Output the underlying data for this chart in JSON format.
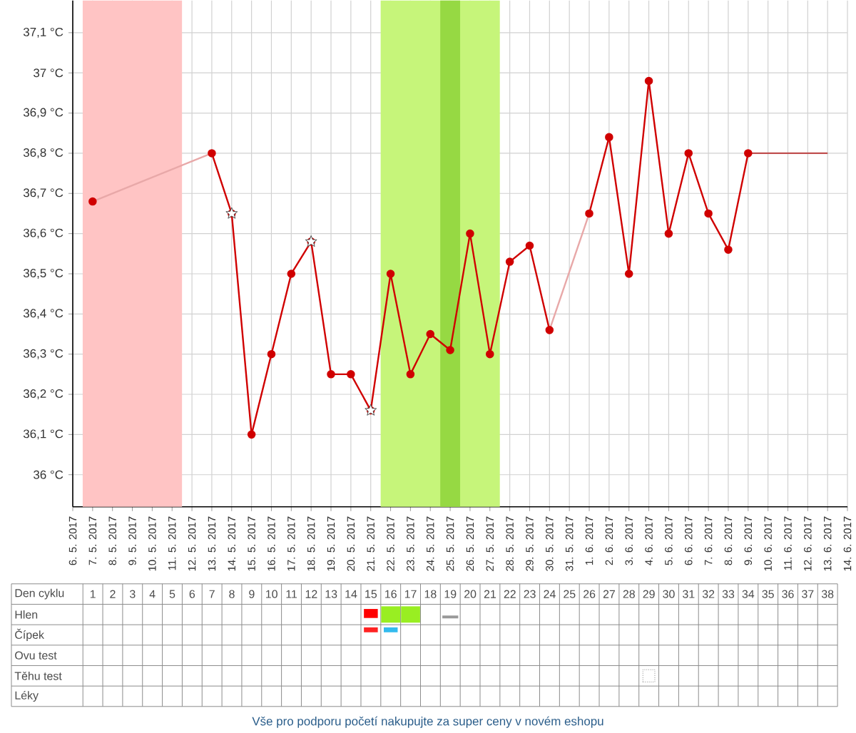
{
  "chart_data": {
    "type": "line",
    "xlim": [
      "2017-05-06",
      "2017-06-14"
    ],
    "xticks": [
      {
        "value": "2017-05-06",
        "label": "6. 5. 2017"
      },
      {
        "value": "2017-05-07",
        "label": "7. 5. 2017"
      },
      {
        "value": "2017-05-08",
        "label": "8. 5. 2017"
      },
      {
        "value": "2017-05-09",
        "label": "9. 5. 2017"
      },
      {
        "value": "2017-05-10",
        "label": "10. 5. 2017"
      },
      {
        "value": "2017-05-11",
        "label": "11. 5. 2017"
      },
      {
        "value": "2017-05-12",
        "label": "12. 5. 2017"
      },
      {
        "value": "2017-05-13",
        "label": "13. 5. 2017"
      },
      {
        "value": "2017-05-14",
        "label": "14. 5. 2017"
      },
      {
        "value": "2017-05-15",
        "label": "15. 5. 2017"
      },
      {
        "value": "2017-05-16",
        "label": "16. 5. 2017"
      },
      {
        "value": "2017-05-17",
        "label": "17. 5. 2017"
      },
      {
        "value": "2017-05-18",
        "label": "18. 5. 2017"
      },
      {
        "value": "2017-05-19",
        "label": "19. 5. 2017"
      },
      {
        "value": "2017-05-20",
        "label": "20. 5. 2017"
      },
      {
        "value": "2017-05-21",
        "label": "21. 5. 2017"
      },
      {
        "value": "2017-05-22",
        "label": "22. 5. 2017"
      },
      {
        "value": "2017-05-23",
        "label": "23. 5. 2017"
      },
      {
        "value": "2017-05-24",
        "label": "24. 5. 2017"
      },
      {
        "value": "2017-05-25",
        "label": "25. 5. 2017"
      },
      {
        "value": "2017-05-26",
        "label": "26. 5. 2017"
      },
      {
        "value": "2017-05-27",
        "label": "27. 5. 2017"
      },
      {
        "value": "2017-05-28",
        "label": "28. 5. 2017"
      },
      {
        "value": "2017-05-29",
        "label": "29. 5. 2017"
      },
      {
        "value": "2017-05-30",
        "label": "30. 5. 2017"
      },
      {
        "value": "2017-05-31",
        "label": "31. 5. 2017"
      },
      {
        "value": "2017-06-01",
        "label": "1. 6. 2017"
      },
      {
        "value": "2017-06-02",
        "label": "2. 6. 2017"
      },
      {
        "value": "2017-06-03",
        "label": "3. 6. 2017"
      },
      {
        "value": "2017-06-04",
        "label": "4. 6. 2017"
      },
      {
        "value": "2017-06-05",
        "label": "5. 6. 2017"
      },
      {
        "value": "2017-06-06",
        "label": "6. 6. 2017"
      },
      {
        "value": "2017-06-07",
        "label": "7. 6. 2017"
      },
      {
        "value": "2017-06-08",
        "label": "8. 6. 2017"
      },
      {
        "value": "2017-06-09",
        "label": "9. 6. 2017"
      },
      {
        "value": "2017-06-10",
        "label": "10. 6. 2017"
      },
      {
        "value": "2017-06-11",
        "label": "11. 6. 2017"
      },
      {
        "value": "2017-06-12",
        "label": "12. 6. 2017"
      },
      {
        "value": "2017-06-13",
        "label": "13. 6. 2017"
      },
      {
        "value": "2017-06-14",
        "label": "14. 6. 2017"
      }
    ],
    "ylim": [
      35.92,
      37.18
    ],
    "yticks": [
      {
        "value": 36,
        "label": "36 °C"
      },
      {
        "value": 36.1,
        "label": "36,1 °C"
      },
      {
        "value": 36.2,
        "label": "36,2 °C"
      },
      {
        "value": 36.3,
        "label": "36,3 °C"
      },
      {
        "value": 36.4,
        "label": "36,4 °C"
      },
      {
        "value": 36.5,
        "label": "36,5 °C"
      },
      {
        "value": 36.6,
        "label": "36,6 °C"
      },
      {
        "value": 36.7,
        "label": "36,7 °C"
      },
      {
        "value": 36.8,
        "label": "36,8 °C"
      },
      {
        "value": 36.9,
        "label": "36,9 °C"
      },
      {
        "value": 37,
        "label": "37 °C"
      },
      {
        "value": 37.1,
        "label": "37,1 °C"
      }
    ],
    "grid": true,
    "marker": "circle",
    "series": [
      {
        "color": "#d00000",
        "x": [
          "2017-05-07",
          "2017-05-08",
          "2017-05-09",
          "2017-05-10",
          "2017-05-11",
          "2017-05-12",
          "2017-05-13",
          "2017-05-14",
          "2017-05-15",
          "2017-05-16",
          "2017-05-17",
          "2017-05-18",
          "2017-05-19",
          "2017-05-20",
          "2017-05-21",
          "2017-05-22",
          "2017-05-23",
          "2017-05-24",
          "2017-05-25",
          "2017-05-26",
          "2017-05-27",
          "2017-05-28",
          "2017-05-29",
          "2017-05-30",
          "2017-05-31",
          "2017-06-01",
          "2017-06-02",
          "2017-06-03",
          "2017-06-04",
          "2017-06-05",
          "2017-06-06",
          "2017-06-07",
          "2017-06-08",
          "2017-06-09"
        ],
        "values": [
          36.68,
          null,
          null,
          null,
          null,
          null,
          36.8,
          36.65,
          36.1,
          36.3,
          36.5,
          36.58,
          36.25,
          36.25,
          36.16,
          36.5,
          36.25,
          36.35,
          36.31,
          36.6,
          36.3,
          36.53,
          36.57,
          36.36,
          null,
          36.65,
          36.84,
          36.5,
          36.98,
          36.6,
          36.8,
          36.65,
          36.56,
          36.8
        ]
      },
      {
        "color": "#e8a8a8",
        "marker": "none",
        "x": [
          "2017-05-07",
          "2017-05-13"
        ],
        "values": [
          36.68,
          36.8
        ]
      },
      {
        "color": "#e8a8a8",
        "marker": "none",
        "x": [
          "2017-05-30",
          "2017-06-01"
        ],
        "values": [
          36.36,
          36.65
        ]
      },
      {
        "color": "#c05050",
        "marker": "none",
        "x": [
          "2017-06-09",
          "2017-06-13"
        ],
        "values": [
          36.8,
          36.8
        ]
      },
      {
        "type": "scatter",
        "color": "#ffffff",
        "marker": "star",
        "x": [
          "2017-05-14",
          "2017-05-18",
          "2017-05-21"
        ],
        "values": [
          36.65,
          36.58,
          36.16
        ]
      }
    ],
    "bands": [
      {
        "axis": "x",
        "from": "2017-05-06T12:00",
        "to": "2017-05-11T12:00",
        "color": "#ffc4c4"
      },
      {
        "axis": "x",
        "from": "2017-05-21T12:00",
        "to": "2017-05-27T12:00",
        "color": "#c6f57a"
      },
      {
        "axis": "x",
        "from": "2017-05-24T12:00",
        "to": "2017-05-25T12:00",
        "color": "#96d943"
      }
    ],
    "x2label": "Den cyklu",
    "x2lim": [
      -3.1,
      39
    ],
    "x2ticks": [
      1,
      2,
      3,
      4,
      5,
      6,
      7,
      8,
      9,
      10,
      11,
      12,
      13,
      14,
      15,
      16,
      17,
      18,
      19,
      20,
      21,
      22,
      23,
      24,
      25,
      26,
      27,
      28,
      29,
      30,
      31,
      32,
      33,
      34,
      35,
      36,
      37,
      38
    ],
    "annotations": [
      "Hlen",
      "Čípek",
      "Ovu test",
      "Těhu test",
      "Léky",
      "Vše pro podporu početí nakupujte za super ceny v novém eshopu"
    ]
  }
}
